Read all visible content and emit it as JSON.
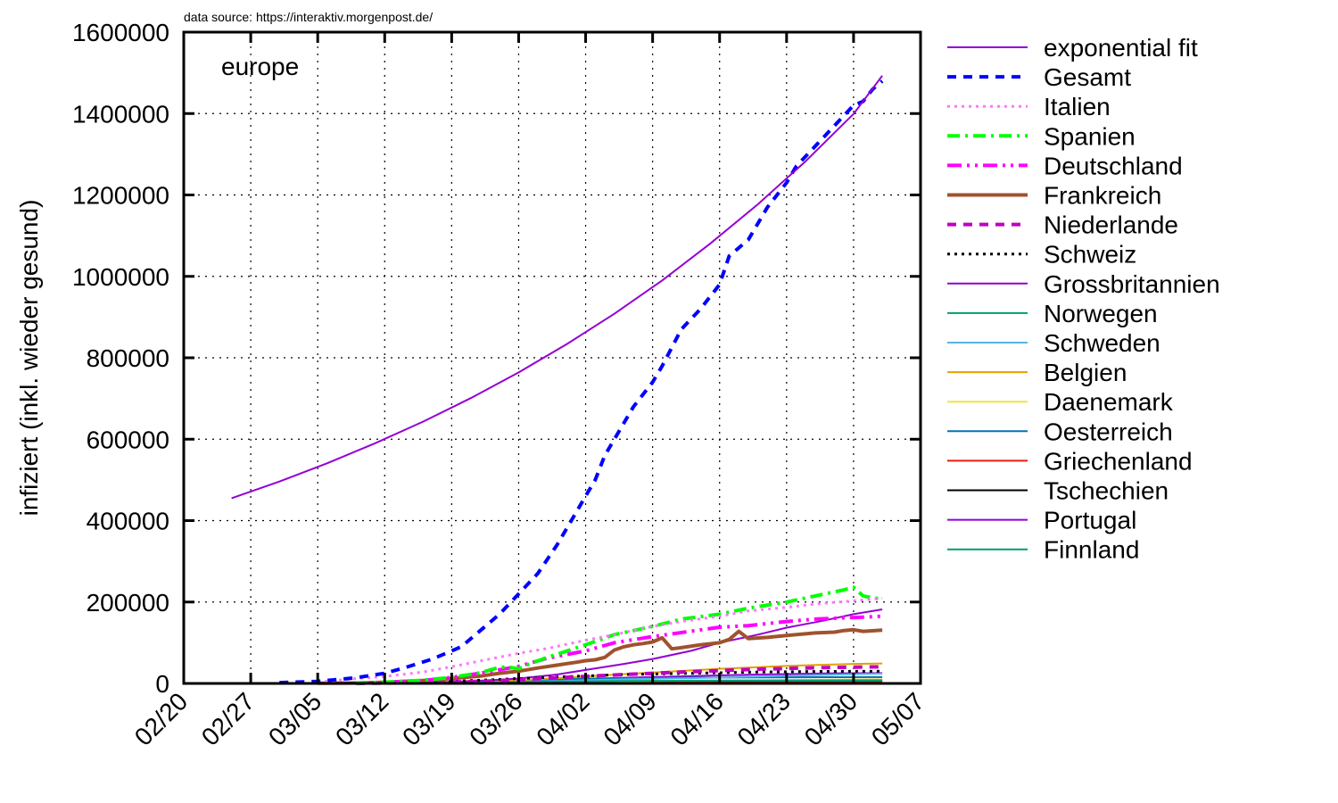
{
  "source_note": "data source: https://interaktiv.morgenpost.de/",
  "chart_data": {
    "type": "line",
    "panel_label": "europe",
    "title": "",
    "xlabel": "",
    "ylabel": "infiziert (inkl. wieder gesund)",
    "xlim": [
      0,
      77
    ],
    "ylim": [
      0,
      1600000
    ],
    "x_ticks": [
      {
        "x": 0,
        "label": "02/20"
      },
      {
        "x": 7,
        "label": "02/27"
      },
      {
        "x": 14,
        "label": "03/05"
      },
      {
        "x": 21,
        "label": "03/12"
      },
      {
        "x": 28,
        "label": "03/19"
      },
      {
        "x": 35,
        "label": "03/26"
      },
      {
        "x": 42,
        "label": "04/02"
      },
      {
        "x": 49,
        "label": "04/09"
      },
      {
        "x": 56,
        "label": "04/16"
      },
      {
        "x": 63,
        "label": "04/23"
      },
      {
        "x": 70,
        "label": "04/30"
      },
      {
        "x": 77,
        "label": "05/07"
      }
    ],
    "y_ticks": [
      {
        "y": 0,
        "label": "0"
      },
      {
        "y": 200000,
        "label": "200000"
      },
      {
        "y": 400000,
        "label": "400000"
      },
      {
        "y": 600000,
        "label": "600000"
      },
      {
        "y": 800000,
        "label": "800000"
      },
      {
        "y": 1000000,
        "label": "1000000"
      },
      {
        "y": 1200000,
        "label": "1200000"
      },
      {
        "y": 1400000,
        "label": "1400000"
      },
      {
        "y": 1600000,
        "label": "1600000"
      }
    ],
    "grid": true,
    "legend_position": "right",
    "x_units": "days since 02/20",
    "series": [
      {
        "name": "exponential fit",
        "color": "#9400d3",
        "width": 2,
        "dash": "",
        "x": [
          5,
          10,
          15,
          20,
          25,
          30,
          35,
          40,
          45,
          50,
          55,
          60,
          65,
          70,
          73
        ],
        "y": [
          455000,
          496000,
          541000,
          590000,
          643000,
          701000,
          764000,
          833000,
          908000,
          990000,
          1080000,
          1177000,
          1283000,
          1399000,
          1493000
        ]
      },
      {
        "name": "Gesamt",
        "color": "#0000ff",
        "width": 4,
        "dash": "10,8",
        "x": [
          10,
          14,
          18,
          21,
          23,
          26,
          29,
          31,
          33,
          35,
          37,
          39,
          41,
          42,
          43,
          44,
          46,
          47,
          49,
          50,
          52,
          54,
          56,
          57,
          59,
          61,
          63,
          64,
          66,
          68,
          70,
          71,
          72,
          73
        ],
        "y": [
          2000,
          5000,
          14000,
          25000,
          38000,
          60000,
          90000,
          130000,
          170000,
          220000,
          270000,
          340000,
          420000,
          460000,
          500000,
          560000,
          640000,
          680000,
          740000,
          780000,
          870000,
          920000,
          980000,
          1050000,
          1090000,
          1170000,
          1230000,
          1270000,
          1320000,
          1370000,
          1420000,
          1430000,
          1460000,
          1480000
        ]
      },
      {
        "name": "Italien",
        "color": "#ff77ff",
        "width": 3,
        "dash": "3,5",
        "x": [
          14,
          18,
          21,
          25,
          28,
          32,
          35,
          38,
          42,
          45,
          49,
          52,
          56,
          59,
          63,
          66,
          70,
          73
        ],
        "y": [
          3000,
          12000,
          17000,
          28000,
          41000,
          60000,
          74000,
          86000,
          106000,
          120000,
          140000,
          152000,
          165000,
          178000,
          187000,
          195000,
          203000,
          209000
        ]
      },
      {
        "name": "Spanien",
        "color": "#00ff00",
        "width": 4,
        "dash": "14,6,3,6",
        "x": [
          18,
          21,
          25,
          28,
          31,
          33,
          34,
          35,
          36,
          38,
          42,
          45,
          49,
          52,
          56,
          59,
          63,
          66,
          69,
          70,
          71,
          72,
          73
        ],
        "y": [
          400,
          3000,
          8000,
          15000,
          26000,
          40000,
          40000,
          36000,
          47000,
          64000,
          95000,
          120000,
          140000,
          158000,
          170000,
          185000,
          200000,
          215000,
          230000,
          236000,
          215000,
          210000,
          208000
        ]
      },
      {
        "name": "Deutschland",
        "color": "#ff00ff",
        "width": 4,
        "dash": "16,6,3,6,3,6",
        "x": [
          18,
          21,
          25,
          28,
          31,
          35,
          38,
          42,
          45,
          49,
          52,
          56,
          59,
          63,
          66,
          70,
          73
        ],
        "y": [
          1000,
          2500,
          7000,
          15000,
          25000,
          42000,
          62000,
          80000,
          100000,
          115000,
          125000,
          138000,
          142000,
          152000,
          158000,
          162000,
          165000
        ]
      },
      {
        "name": "Frankreich",
        "color": "#a0522d",
        "width": 4,
        "dash": "",
        "x": [
          14,
          18,
          21,
          25,
          28,
          31,
          33,
          35,
          37,
          39,
          41,
          42,
          43,
          44,
          45,
          46,
          47,
          48,
          49,
          50,
          51,
          52,
          54,
          56,
          57,
          58,
          59,
          61,
          63,
          66,
          68,
          69,
          70,
          71,
          73
        ],
        "y": [
          400,
          1200,
          3000,
          7000,
          12000,
          18000,
          25000,
          30000,
          38000,
          45000,
          52000,
          56000,
          58000,
          64000,
          82000,
          90000,
          95000,
          98000,
          102000,
          112000,
          85000,
          88000,
          95000,
          100000,
          108000,
          128000,
          110000,
          113000,
          118000,
          124000,
          126000,
          130000,
          132000,
          128000,
          131000
        ]
      },
      {
        "name": "Niederlande",
        "color": "#c000c0",
        "width": 4,
        "dash": "10,8",
        "x": [
          18,
          25,
          32,
          39,
          46,
          53,
          60,
          67,
          73
        ],
        "y": [
          300,
          1500,
          6000,
          14000,
          22000,
          29000,
          35000,
          39000,
          41000
        ]
      },
      {
        "name": "Schweiz",
        "color": "#000000",
        "width": 3,
        "dash": "3,5",
        "x": [
          18,
          25,
          32,
          39,
          46,
          53,
          60,
          67,
          73
        ],
        "y": [
          500,
          2500,
          9000,
          16000,
          22000,
          25000,
          28000,
          29500,
          30000
        ]
      },
      {
        "name": "Grossbritannien",
        "color": "#9400d3",
        "width": 2,
        "dash": "",
        "x": [
          18,
          21,
          25,
          28,
          32,
          35,
          39,
          42,
          46,
          49,
          53,
          56,
          60,
          63,
          67,
          70,
          73
        ],
        "y": [
          300,
          800,
          2000,
          4000,
          8000,
          12000,
          22000,
          33000,
          48000,
          60000,
          80000,
          100000,
          120000,
          137000,
          155000,
          170000,
          182000
        ]
      },
      {
        "name": "Norwegen",
        "color": "#009e73",
        "width": 2,
        "dash": "",
        "x": [
          18,
          25,
          32,
          39,
          46,
          53,
          60,
          67,
          73
        ],
        "y": [
          300,
          1500,
          3000,
          4500,
          6000,
          6800,
          7300,
          7700,
          8000
        ]
      },
      {
        "name": "Schweden",
        "color": "#56b4e9",
        "width": 2,
        "dash": "",
        "x": [
          18,
          25,
          32,
          39,
          46,
          53,
          60,
          67,
          73
        ],
        "y": [
          200,
          1000,
          3000,
          6000,
          10000,
          13000,
          17000,
          21000,
          24000
        ]
      },
      {
        "name": "Belgien",
        "color": "#e69f00",
        "width": 2,
        "dash": "",
        "x": [
          18,
          21,
          25,
          28,
          32,
          35,
          39,
          42,
          46,
          49,
          53,
          56,
          60,
          63,
          67,
          70,
          73
        ],
        "y": [
          200,
          500,
          1200,
          2500,
          5000,
          8000,
          13000,
          17000,
          23000,
          27000,
          32000,
          36000,
          40000,
          43000,
          46000,
          48000,
          49000
        ]
      },
      {
        "name": "Daenemark",
        "color": "#f0e442",
        "width": 2,
        "dash": "",
        "x": [
          18,
          25,
          32,
          39,
          46,
          53,
          60,
          67,
          73
        ],
        "y": [
          200,
          800,
          2000,
          3500,
          5500,
          7000,
          8300,
          9300,
          10000
        ]
      },
      {
        "name": "Oesterreich",
        "color": "#0072b2",
        "width": 2,
        "dash": "",
        "x": [
          18,
          25,
          32,
          39,
          46,
          53,
          60,
          67,
          73
        ],
        "y": [
          200,
          1000,
          5000,
          10500,
          13000,
          14300,
          15000,
          15400,
          15600
        ]
      },
      {
        "name": "Griechenland",
        "color": "#e51e10",
        "width": 2,
        "dash": "",
        "x": [
          18,
          32,
          46,
          60,
          73
        ],
        "y": [
          50,
          900,
          1900,
          2400,
          2600
        ]
      },
      {
        "name": "Tschechien",
        "color": "#000000",
        "width": 2,
        "dash": "",
        "x": [
          18,
          32,
          46,
          60,
          73
        ],
        "y": [
          50,
          1800,
          5500,
          7300,
          7800
        ]
      },
      {
        "name": "Portugal",
        "color": "#9400d3",
        "width": 2,
        "dash": "",
        "x": [
          18,
          25,
          32,
          39,
          46,
          53,
          60,
          67,
          73
        ],
        "y": [
          50,
          800,
          4000,
          9000,
          14000,
          18000,
          22000,
          24500,
          25500
        ]
      },
      {
        "name": "Finnland",
        "color": "#009e73",
        "width": 2,
        "dash": "",
        "x": [
          18,
          32,
          46,
          60,
          73
        ],
        "y": [
          50,
          900,
          2500,
          4000,
          5500
        ]
      }
    ]
  }
}
